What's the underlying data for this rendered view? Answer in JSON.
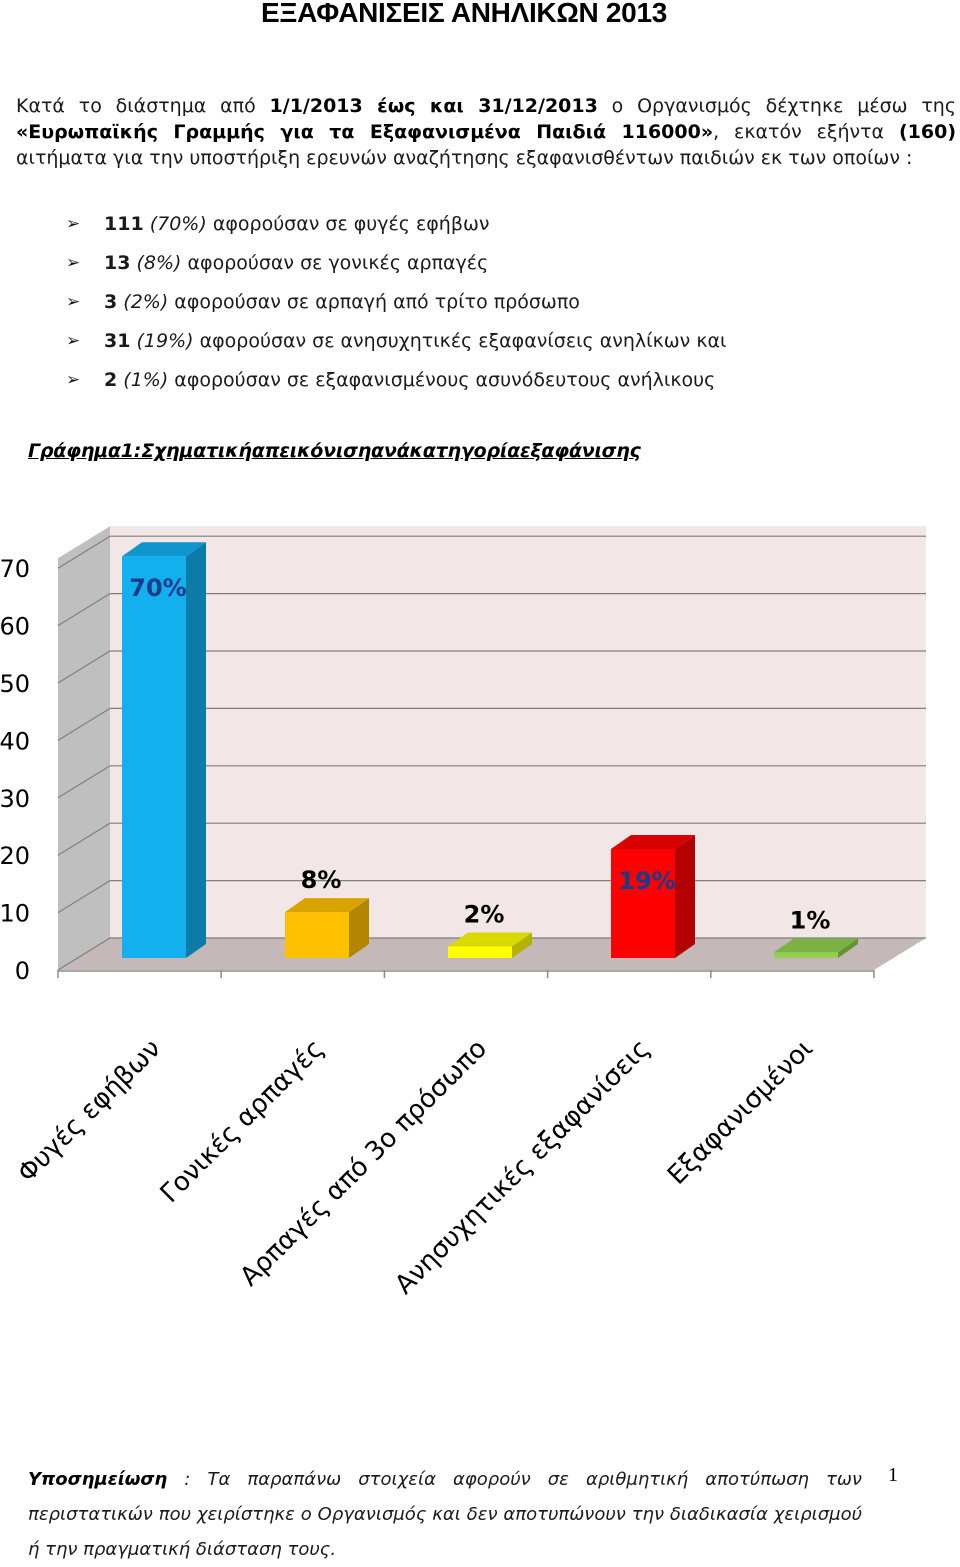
{
  "title": "ΕΞΑΦΑΝΙΣΕΙΣ ΑΝΗΛΙΚΩΝ 2013",
  "intro": {
    "t1": "Κατά το διάστημα από ",
    "date_from": "1/1/2013",
    "t2": " έως και ",
    "date_to": "31/12/2013",
    "t3": " ο Οργανισμός δέχτηκε μέσω της ",
    "hotline": "«Ευρωπαϊκής Γραμμής για τα Εξαφανισμένα Παιδιά 116000»",
    "t4": ", εκατόν εξήντα ",
    "count": "(160)",
    "t5": " αιτήματα για την υποστήριξη ερευνών αναζήτησης εξαφανισθέντων παιδιών εκ των οποίων :"
  },
  "bullets": [
    {
      "number": "111",
      "percent": "(70%)",
      "text": " αφορούσαν σε φυγές εφήβων"
    },
    {
      "number": "13",
      "percent": "(8%)",
      "text": " αφορούσαν σε γονικές αρπαγές"
    },
    {
      "number": "3",
      "percent": "(2%)",
      "text": " αφορούσαν σε αρπαγή από τρίτο πρόσωπο"
    },
    {
      "number": "31",
      "percent": "(19%)",
      "text": " αφορούσαν σε ανησυχητικές εξαφανίσεις ανηλίκων και"
    },
    {
      "number": "2",
      "percent": "(1%)",
      "text": " αφορούσαν σε εξαφανισμένους ασυνόδευτους ανήλικους"
    }
  ],
  "chart_caption": "Γράφημα1:Σχηματικήαπεικόνισηανάκατηγορίαεξαφάνισης",
  "chart_data": {
    "type": "bar",
    "title": "",
    "xlabel": "",
    "ylabel": "",
    "categories": [
      "Φυγές εφήβων",
      "Γονικές αρπαγές",
      "Αρπαγές από 3ο πρόσωπο",
      "Ανησυχητικές εξαφανίσεις",
      "Εξαφανισμένοι"
    ],
    "values": [
      70,
      8,
      2,
      19,
      1
    ],
    "data_labels": [
      "70%",
      "8%",
      "2%",
      "19%",
      "1%"
    ],
    "yticks": [
      0,
      10,
      20,
      30,
      40,
      50,
      60,
      70
    ],
    "ylim": [
      0,
      70
    ],
    "style": "3d-column",
    "grid": true,
    "colors": {
      "bars": [
        "#13b0f0",
        "#ffc000",
        "#ffff00",
        "#ff0000",
        "#92d050"
      ],
      "wall": "#f2e7e6",
      "side_wall": "#bfbfbf",
      "floor": "#c4b8b8",
      "gridline": "#7f7f7f"
    }
  },
  "footnote": {
    "label": "Υποσημείωση",
    "text": " : Τα παραπάνω στοιχεία αφορούν σε αριθμητική αποτύπωση των περιστατικών που χειρίστηκε ο Οργανισμός και δεν αποτυπώνουν την διαδικασία χειρισμού ή την πραγματική διάσταση τους."
  },
  "page_number": "1"
}
